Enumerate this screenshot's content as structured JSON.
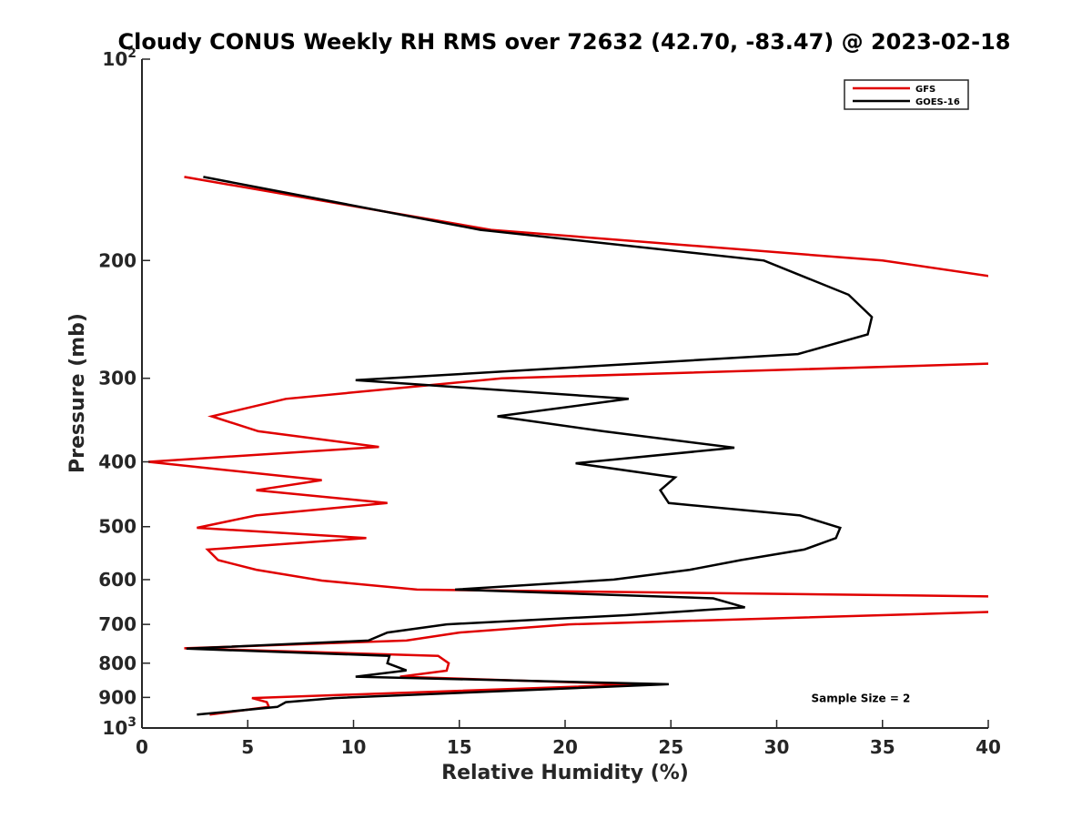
{
  "chart_data": {
    "type": "line",
    "title": "Cloudy CONUS Weekly RH RMS over 72632 (42.70, -83.47) @ 2023-02-18",
    "xlabel": "Relative Humidity (%)",
    "ylabel": "Pressure (mb)",
    "xlim": [
      0,
      40
    ],
    "ylim": [
      100,
      1000
    ],
    "y_scale": "log",
    "y_reversed": true,
    "grid": false,
    "legend_position": "top-right",
    "x_ticks": [
      "0",
      "5",
      "10",
      "15",
      "20",
      "25",
      "30",
      "35",
      "40"
    ],
    "y_ticks": [
      {
        "value": 100,
        "base": "10",
        "exp": "2"
      },
      {
        "value": 200,
        "label": "200"
      },
      {
        "value": 300,
        "label": "300"
      },
      {
        "value": 400,
        "label": "400"
      },
      {
        "value": 500,
        "label": "500"
      },
      {
        "value": 600,
        "label": "600"
      },
      {
        "value": 700,
        "label": "700"
      },
      {
        "value": 800,
        "label": "800"
      },
      {
        "value": 900,
        "label": "900"
      },
      {
        "value": 1000,
        "base": "10",
        "exp": "3"
      }
    ],
    "series": [
      {
        "name": "GFS",
        "color": "#e00000",
        "points": [
          [
            2.0,
            150
          ],
          [
            16.5,
            180
          ],
          [
            35.0,
            200
          ],
          [
            40.5,
            212
          ],
          [
            40.5,
            285
          ],
          [
            17.0,
            300
          ],
          [
            6.8,
            322
          ],
          [
            3.3,
            342
          ],
          [
            5.5,
            360
          ],
          [
            11.2,
            380
          ],
          [
            0.3,
            400
          ],
          [
            8.5,
            426
          ],
          [
            5.4,
            441
          ],
          [
            11.6,
            461
          ],
          [
            5.4,
            481
          ],
          [
            2.6,
            502
          ],
          [
            10.6,
            520
          ],
          [
            3.1,
            541
          ],
          [
            3.6,
            561
          ],
          [
            5.4,
            580
          ],
          [
            8.5,
            602
          ],
          [
            13.0,
            621
          ],
          [
            40.5,
            636
          ],
          [
            40.5,
            670
          ],
          [
            20.2,
            700
          ],
          [
            15.0,
            720
          ],
          [
            12.5,
            740
          ],
          [
            2.0,
            760
          ],
          [
            14.0,
            780
          ],
          [
            14.5,
            800
          ],
          [
            14.4,
            821
          ],
          [
            12.2,
            838
          ],
          [
            23.5,
            861
          ],
          [
            5.2,
            902
          ],
          [
            5.9,
            915
          ],
          [
            6.0,
            930
          ],
          [
            3.2,
            955
          ]
        ]
      },
      {
        "name": "GOES-16",
        "color": "#000000",
        "points": [
          [
            2.9,
            150
          ],
          [
            16.0,
            180
          ],
          [
            29.4,
            200
          ],
          [
            33.4,
            225
          ],
          [
            34.5,
            243
          ],
          [
            34.3,
            258
          ],
          [
            31.0,
            276
          ],
          [
            10.1,
            302
          ],
          [
            23.0,
            322
          ],
          [
            16.8,
            342
          ],
          [
            21.8,
            360
          ],
          [
            28.0,
            381
          ],
          [
            20.5,
            402
          ],
          [
            25.2,
            422
          ],
          [
            24.5,
            441
          ],
          [
            24.9,
            461
          ],
          [
            31.1,
            481
          ],
          [
            33.0,
            502
          ],
          [
            32.8,
            520
          ],
          [
            31.3,
            541
          ],
          [
            28.3,
            561
          ],
          [
            25.9,
            580
          ],
          [
            22.3,
            600
          ],
          [
            14.8,
            621
          ],
          [
            27.0,
            640
          ],
          [
            28.5,
            660
          ],
          [
            22.9,
            678
          ],
          [
            14.4,
            700
          ],
          [
            11.6,
            720
          ],
          [
            10.7,
            740
          ],
          [
            2.1,
            761
          ],
          [
            11.7,
            780
          ],
          [
            11.6,
            800
          ],
          [
            12.5,
            820
          ],
          [
            10.1,
            838
          ],
          [
            24.9,
            860
          ],
          [
            9.1,
            902
          ],
          [
            6.8,
            915
          ],
          [
            6.4,
            930
          ],
          [
            2.6,
            955
          ]
        ]
      }
    ],
    "annotations": [
      {
        "text": "Sample Size = 2",
        "x": 34.0,
        "y": 900
      }
    ]
  }
}
